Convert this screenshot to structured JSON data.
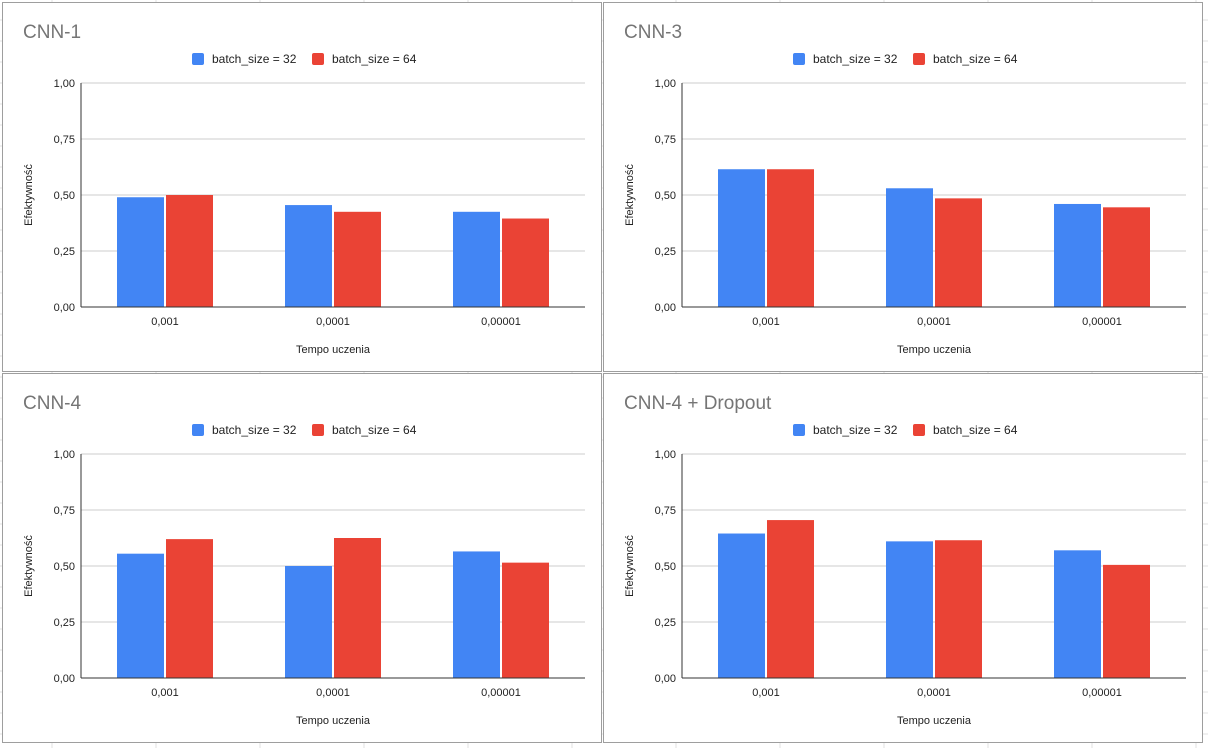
{
  "colors": {
    "series_1": "#4285f4",
    "series_2": "#ea4335",
    "gridline": "#cccccc",
    "axis": "#333333",
    "title": "#757575",
    "text": "#222222"
  },
  "chart_data": [
    {
      "type": "bar",
      "title": "CNN-1",
      "xlabel": "Tempo uczenia",
      "ylabel": "Efektywność",
      "categories": [
        "0,001",
        "0,0001",
        "0,00001"
      ],
      "series": [
        {
          "name": "batch_size = 32",
          "values": [
            0.49,
            0.455,
            0.425
          ]
        },
        {
          "name": "batch_size = 64",
          "values": [
            0.5,
            0.425,
            0.395
          ]
        }
      ],
      "ylim": [
        0,
        1
      ],
      "yticks": [
        "0,00",
        "0,25",
        "0,50",
        "0,75",
        "1,00"
      ],
      "legend_position": "top",
      "grid": true
    },
    {
      "type": "bar",
      "title": "CNN-3",
      "xlabel": "Tempo uczenia",
      "ylabel": "Efektywność",
      "categories": [
        "0,001",
        "0,0001",
        "0,00001"
      ],
      "series": [
        {
          "name": "batch_size = 32",
          "values": [
            0.615,
            0.53,
            0.46
          ]
        },
        {
          "name": "batch_size = 64",
          "values": [
            0.615,
            0.485,
            0.445
          ]
        }
      ],
      "ylim": [
        0,
        1
      ],
      "yticks": [
        "0,00",
        "0,25",
        "0,50",
        "0,75",
        "1,00"
      ],
      "legend_position": "top",
      "grid": true
    },
    {
      "type": "bar",
      "title": "CNN-4",
      "xlabel": "Tempo uczenia",
      "ylabel": "Efektywność",
      "categories": [
        "0,001",
        "0,0001",
        "0,00001"
      ],
      "series": [
        {
          "name": "batch_size = 32",
          "values": [
            0.555,
            0.5,
            0.565
          ]
        },
        {
          "name": "batch_size = 64",
          "values": [
            0.62,
            0.625,
            0.515
          ]
        }
      ],
      "ylim": [
        0,
        1
      ],
      "yticks": [
        "0,00",
        "0,25",
        "0,50",
        "0,75",
        "1,00"
      ],
      "legend_position": "top",
      "grid": true
    },
    {
      "type": "bar",
      "title": "CNN-4 + Dropout",
      "xlabel": "Tempo uczenia",
      "ylabel": "Efektywność",
      "categories": [
        "0,001",
        "0,0001",
        "0,00001"
      ],
      "series": [
        {
          "name": "batch_size = 32",
          "values": [
            0.645,
            0.61,
            0.57
          ]
        },
        {
          "name": "batch_size = 64",
          "values": [
            0.705,
            0.615,
            0.505
          ]
        }
      ],
      "ylim": [
        0,
        1
      ],
      "yticks": [
        "0,00",
        "0,25",
        "0,50",
        "0,75",
        "1,00"
      ],
      "legend_position": "top",
      "grid": true
    }
  ]
}
